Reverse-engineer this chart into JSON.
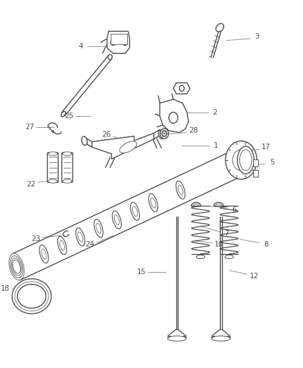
{
  "bg_color": "#ffffff",
  "line_color": "#4a4a4a",
  "label_color": "#4a4a4a",
  "callout_color": "#888888",
  "figsize": [
    4.38,
    5.33
  ],
  "dpi": 100,
  "callouts": {
    "1": {
      "from": [
        0.595,
        0.605
      ],
      "to": [
        0.69,
        0.605
      ]
    },
    "2": {
      "from": [
        0.595,
        0.695
      ],
      "to": [
        0.685,
        0.695
      ]
    },
    "3": {
      "from": [
        0.745,
        0.89
      ],
      "to": [
        0.825,
        0.895
      ]
    },
    "4": {
      "from": [
        0.36,
        0.875
      ],
      "to": [
        0.285,
        0.875
      ]
    },
    "5": {
      "from": [
        0.815,
        0.55
      ],
      "to": [
        0.875,
        0.555
      ]
    },
    "6": {
      "from": [
        0.685,
        0.44
      ],
      "to": [
        0.75,
        0.435
      ]
    },
    "7": {
      "from": [
        0.66,
        0.385
      ],
      "to": [
        0.725,
        0.37
      ]
    },
    "8": {
      "from": [
        0.79,
        0.35
      ],
      "to": [
        0.855,
        0.34
      ]
    },
    "10": {
      "from": [
        0.635,
        0.345
      ],
      "to": [
        0.7,
        0.34
      ]
    },
    "12": {
      "from": [
        0.755,
        0.265
      ],
      "to": [
        0.815,
        0.255
      ]
    },
    "15": {
      "from": [
        0.545,
        0.26
      ],
      "to": [
        0.485,
        0.26
      ]
    },
    "17": {
      "from": [
        0.81,
        0.585
      ],
      "to": [
        0.855,
        0.595
      ]
    },
    "18": {
      "from": [
        0.09,
        0.215
      ],
      "to": [
        0.035,
        0.215
      ]
    },
    "22": {
      "from": [
        0.185,
        0.51
      ],
      "to": [
        0.12,
        0.505
      ]
    },
    "23": {
      "from": [
        0.2,
        0.36
      ],
      "to": [
        0.135,
        0.355
      ]
    },
    "24": {
      "from": [
        0.37,
        0.36
      ],
      "to": [
        0.315,
        0.34
      ]
    },
    "25": {
      "from": [
        0.295,
        0.685
      ],
      "to": [
        0.245,
        0.685
      ]
    },
    "26": {
      "from": [
        0.42,
        0.61
      ],
      "to": [
        0.37,
        0.63
      ]
    },
    "27": {
      "from": [
        0.175,
        0.655
      ],
      "to": [
        0.115,
        0.655
      ]
    },
    "28": {
      "from": [
        0.545,
        0.635
      ],
      "to": [
        0.615,
        0.64
      ]
    }
  }
}
